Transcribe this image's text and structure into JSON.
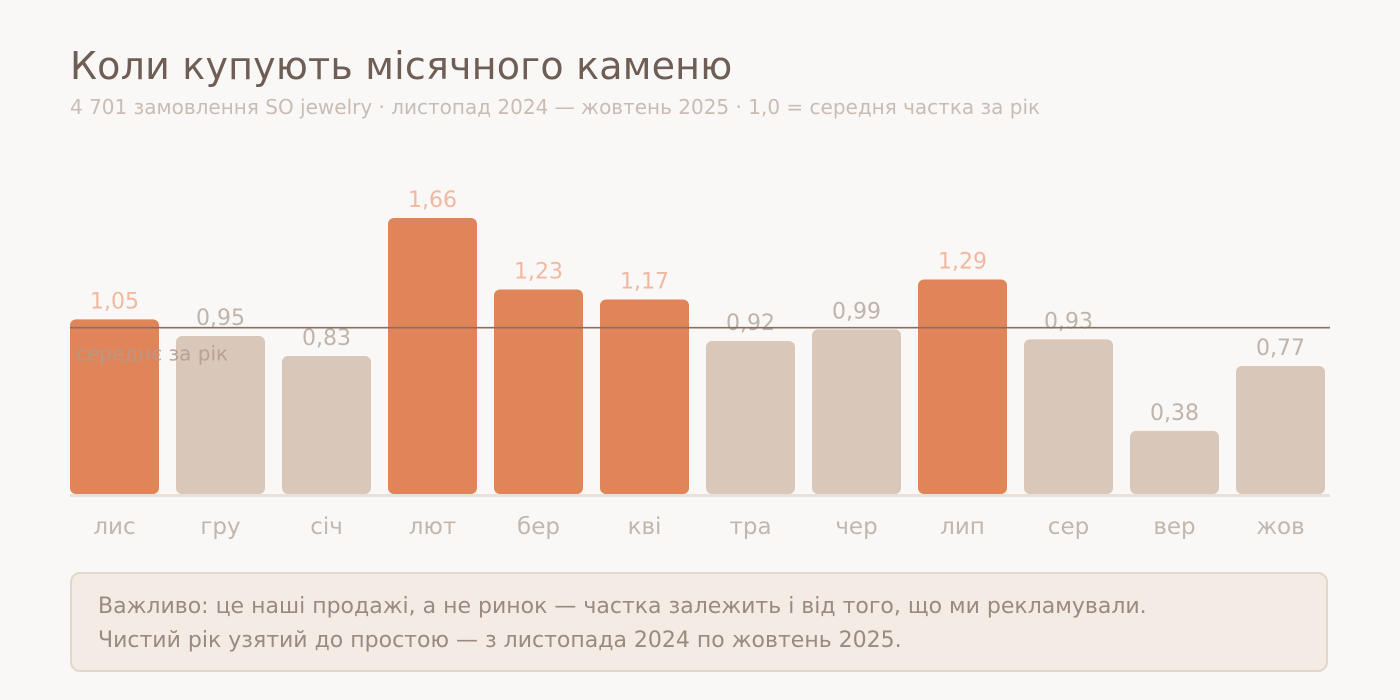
{
  "title": "Коли купують місячного каменю",
  "subtitle": "4 701 замовлення SO jewelry · листопад 2024 — жовтень 2025 · 1,0 = середня частка за рік",
  "chart_data": {
    "type": "bar",
    "categories": [
      "лис",
      "гру",
      "січ",
      "лют",
      "бер",
      "кві",
      "тра",
      "чер",
      "лип",
      "сер",
      "вер",
      "жов"
    ],
    "values": [
      1.05,
      0.95,
      0.83,
      1.66,
      1.23,
      1.17,
      0.92,
      0.99,
      1.29,
      0.93,
      0.38,
      0.77
    ],
    "value_labels": [
      "1,05",
      "0,95",
      "0,83",
      "1,66",
      "1,23",
      "1,17",
      "0,92",
      "0,99",
      "1,29",
      "0,93",
      "0,38",
      "0,77"
    ],
    "reference_line": {
      "value": 1.0,
      "label": "середнє за рік"
    },
    "ylim": [
      0,
      1.66
    ],
    "grid": false,
    "legend": "none",
    "colors": {
      "above_average": "#e0855a",
      "below_average": "#d9c8b9",
      "above_label": "#f0b8a0",
      "below_label": "#bfb3aa",
      "reference_line": "#8a6e60",
      "baseline": "#e8e1db",
      "category_label": "#c2b6ad"
    }
  },
  "note": {
    "line1": "Важливо: це наші продажі, а не ринок — частка залежить і від того, що ми рекламували.",
    "line2": "Чистий рік узятий до простою — з листопада 2024 по жовтень 2025."
  }
}
